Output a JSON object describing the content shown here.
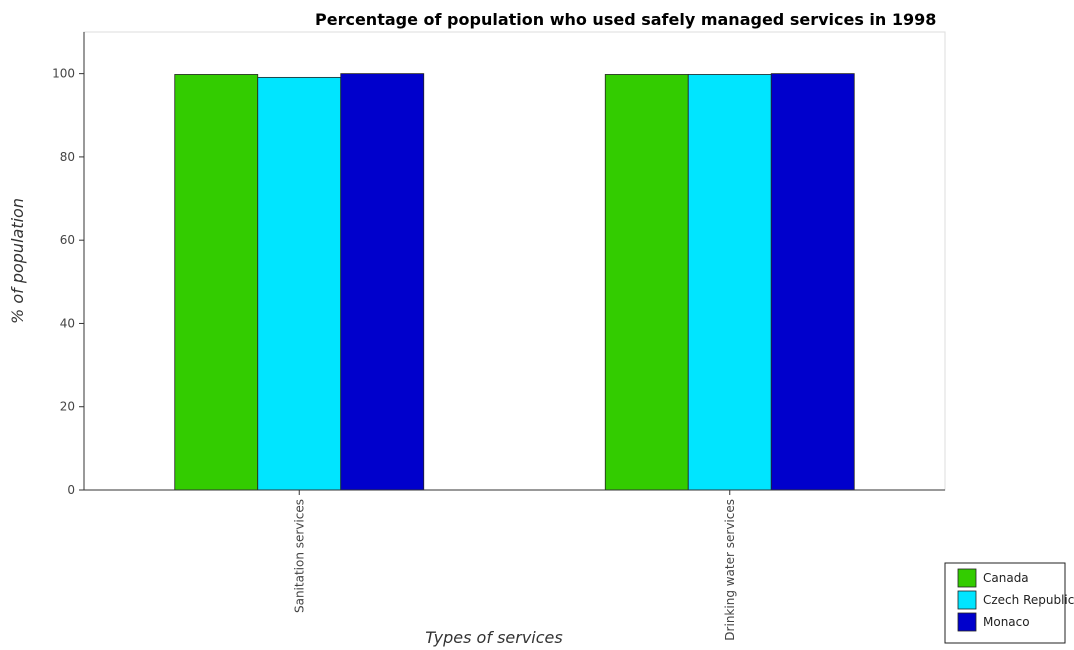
{
  "chart_data": {
    "type": "bar",
    "title": "Percentage of population who used safely managed services in 1998",
    "xlabel": "Types of services",
    "ylabel": "% of population",
    "categories": [
      "Sanitation services",
      "Drinking water services"
    ],
    "series": [
      {
        "name": "Canada",
        "color": "#33cc00",
        "values": [
          99.8,
          99.8
        ]
      },
      {
        "name": "Czech Republic",
        "color": "#00e5ff",
        "values": [
          99.1,
          99.8
        ]
      },
      {
        "name": "Monaco",
        "color": "#0000cc",
        "values": [
          100,
          100
        ]
      }
    ],
    "ylim": [
      0,
      110
    ],
    "yticks": [
      0,
      20,
      40,
      60,
      80,
      100
    ],
    "grid": false,
    "legend_position": "bottom-right"
  }
}
